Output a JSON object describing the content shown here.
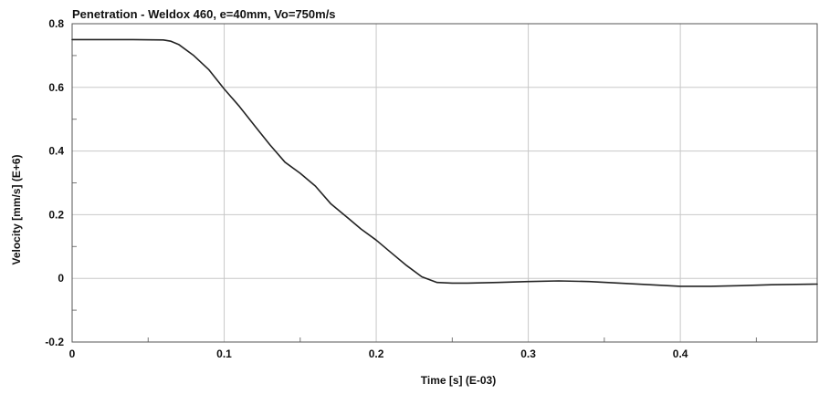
{
  "chart_data": {
    "type": "line",
    "title": "Penetration - Weldox 460, e=40mm, Vo=750m/s",
    "xlabel": "Time  [s] (E-03)",
    "ylabel": "Velocity [mm/s] (E+6)",
    "xlim": [
      0,
      0.49
    ],
    "ylim": [
      -0.2,
      0.8
    ],
    "xticks": [
      0,
      0.1,
      0.2,
      0.3,
      0.4
    ],
    "xtick_labels": [
      "0",
      "0.1",
      "0.2",
      "0.3",
      "0.4"
    ],
    "yticks": [
      -0.2,
      0,
      0.2,
      0.4,
      0.6,
      0.8
    ],
    "ytick_labels": [
      "-0.2",
      "0",
      "0.2",
      "0.4",
      "0.6",
      "0.8"
    ],
    "grid": true,
    "series": [
      {
        "color": "#222222",
        "x": [
          0,
          0.02,
          0.04,
          0.06,
          0.065,
          0.07,
          0.08,
          0.09,
          0.1,
          0.11,
          0.12,
          0.13,
          0.14,
          0.15,
          0.16,
          0.17,
          0.18,
          0.19,
          0.2,
          0.21,
          0.22,
          0.23,
          0.24,
          0.25,
          0.26,
          0.28,
          0.3,
          0.32,
          0.34,
          0.36,
          0.38,
          0.4,
          0.42,
          0.44,
          0.46,
          0.49
        ],
        "y": [
          0.75,
          0.75,
          0.75,
          0.749,
          0.745,
          0.735,
          0.7,
          0.655,
          0.595,
          0.54,
          0.48,
          0.42,
          0.365,
          0.33,
          0.29,
          0.235,
          0.195,
          0.155,
          0.12,
          0.08,
          0.04,
          0.005,
          -0.013,
          -0.015,
          -0.015,
          -0.013,
          -0.01,
          -0.008,
          -0.01,
          -0.015,
          -0.02,
          -0.025,
          -0.025,
          -0.023,
          -0.02,
          -0.018
        ]
      }
    ]
  }
}
